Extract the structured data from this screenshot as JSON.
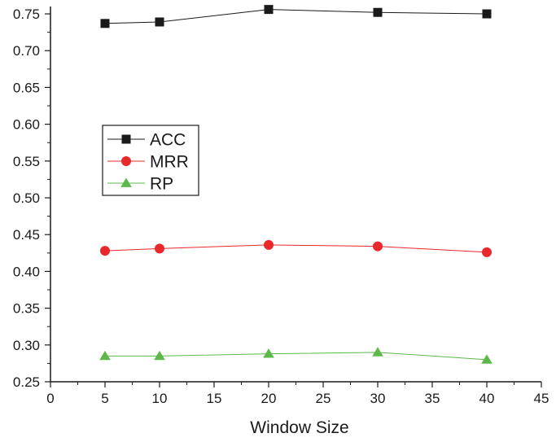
{
  "chart_data": {
    "type": "line",
    "title": "",
    "xlabel": "Window Size",
    "ylabel": "",
    "x": [
      5,
      10,
      20,
      30,
      40
    ],
    "xlim": [
      0,
      45
    ],
    "ylim": [
      0.25,
      0.76
    ],
    "xticks": [
      "0",
      "5",
      "10",
      "15",
      "20",
      "25",
      "30",
      "35",
      "40",
      "45"
    ],
    "yticks": [
      "0.25",
      "0.30",
      "0.35",
      "0.40",
      "0.45",
      "0.50",
      "0.55",
      "0.60",
      "0.65",
      "0.70",
      "0.75"
    ],
    "grid": false,
    "legend": "upper-left",
    "series": [
      {
        "name": "ACC",
        "values": [
          0.737,
          0.739,
          0.756,
          0.752,
          0.75
        ],
        "color": "#1a1a1a",
        "marker": "square"
      },
      {
        "name": "MRR",
        "values": [
          0.428,
          0.431,
          0.436,
          0.434,
          0.426
        ],
        "color": "#e8282b",
        "marker": "circle"
      },
      {
        "name": "RP",
        "values": [
          0.285,
          0.285,
          0.288,
          0.29,
          0.28
        ],
        "color": "#5cb84a",
        "marker": "triangle"
      }
    ]
  }
}
